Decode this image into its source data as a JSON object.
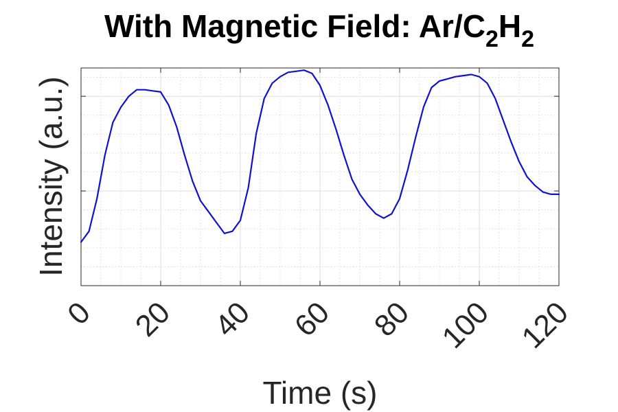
{
  "chart_data": {
    "type": "line",
    "title": {
      "prefix": "With Magnetic Field: Ar/C",
      "sub1": "2",
      "mid": "H",
      "sub2": "2"
    },
    "xlabel": "Time (s)",
    "ylabel": "Intensity (a.u.)",
    "xlim": [
      0,
      120
    ],
    "ylim": [
      0,
      1
    ],
    "x_ticks": [
      0,
      20,
      40,
      60,
      80,
      100,
      120
    ],
    "x_tick_labels": [
      "0",
      "20",
      "40",
      "60",
      "80",
      "100",
      "120"
    ],
    "y_ticks": [
      0.435,
      0.87
    ],
    "y_tick_labels": [
      "",
      ""
    ],
    "grid": true,
    "minor_grid": true,
    "legend": "none",
    "series": [
      {
        "color": "#1010d0",
        "x": [
          0,
          2,
          4,
          6,
          8,
          10,
          12,
          14,
          16,
          18,
          20,
          22,
          24,
          26,
          28,
          30,
          32,
          34,
          36,
          38,
          40,
          42,
          44,
          46,
          48,
          50,
          52,
          54,
          56,
          58,
          60,
          62,
          64,
          66,
          68,
          70,
          72,
          74,
          76,
          78,
          80,
          82,
          84,
          86,
          88,
          90,
          92,
          94,
          96,
          98,
          100,
          102,
          104,
          106,
          108,
          110,
          112,
          114,
          116,
          118,
          120
        ],
        "y": [
          0.2,
          0.25,
          0.4,
          0.6,
          0.75,
          0.82,
          0.87,
          0.9,
          0.9,
          0.895,
          0.89,
          0.83,
          0.73,
          0.6,
          0.48,
          0.39,
          0.34,
          0.29,
          0.24,
          0.25,
          0.3,
          0.45,
          0.7,
          0.86,
          0.93,
          0.96,
          0.98,
          0.985,
          0.99,
          0.975,
          0.92,
          0.83,
          0.72,
          0.6,
          0.49,
          0.42,
          0.37,
          0.33,
          0.31,
          0.33,
          0.4,
          0.53,
          0.68,
          0.82,
          0.91,
          0.94,
          0.95,
          0.96,
          0.965,
          0.97,
          0.96,
          0.93,
          0.86,
          0.76,
          0.66,
          0.57,
          0.5,
          0.46,
          0.43,
          0.42,
          0.42
        ]
      }
    ]
  }
}
